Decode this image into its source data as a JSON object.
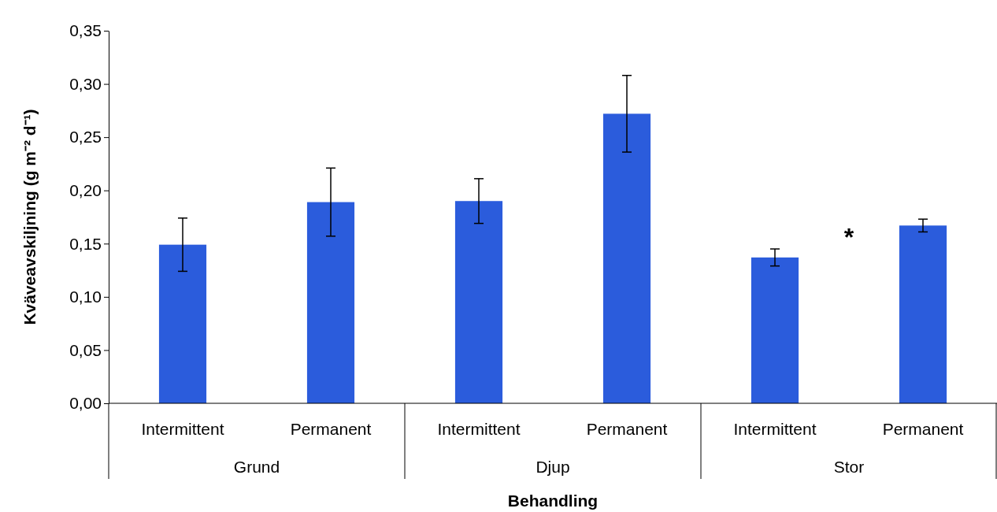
{
  "chart_data": {
    "type": "bar",
    "xlabel": "Behandling",
    "ylabel": "Kväveavskiljning (g m⁻² d⁻¹)",
    "categories": [
      "Grund",
      "Djup",
      "Stor"
    ],
    "series": [
      {
        "name": "Intermittent",
        "color": "#2b5cdc",
        "values": [
          0.149,
          0.19,
          0.137
        ],
        "errors": [
          0.025,
          0.021,
          0.008
        ]
      },
      {
        "name": "Permanent",
        "color": "#2b5cdc",
        "values": [
          0.189,
          0.272,
          0.167
        ],
        "errors": [
          0.032,
          0.036,
          0.006
        ]
      }
    ],
    "ylim": [
      0,
      0.35
    ],
    "yticks": [
      {
        "value": 0,
        "label": "0,00"
      },
      {
        "value": 0.05,
        "label": "0,05"
      },
      {
        "value": 0.1,
        "label": "0,10"
      },
      {
        "value": 0.15,
        "label": "0,15"
      },
      {
        "value": 0.2,
        "label": "0,20"
      },
      {
        "value": 0.25,
        "label": "0,25"
      },
      {
        "value": 0.3,
        "label": "0,30"
      },
      {
        "value": 0.35,
        "label": "0,35"
      }
    ],
    "annotations": [
      "*"
    ],
    "grid": false,
    "legend": false
  }
}
